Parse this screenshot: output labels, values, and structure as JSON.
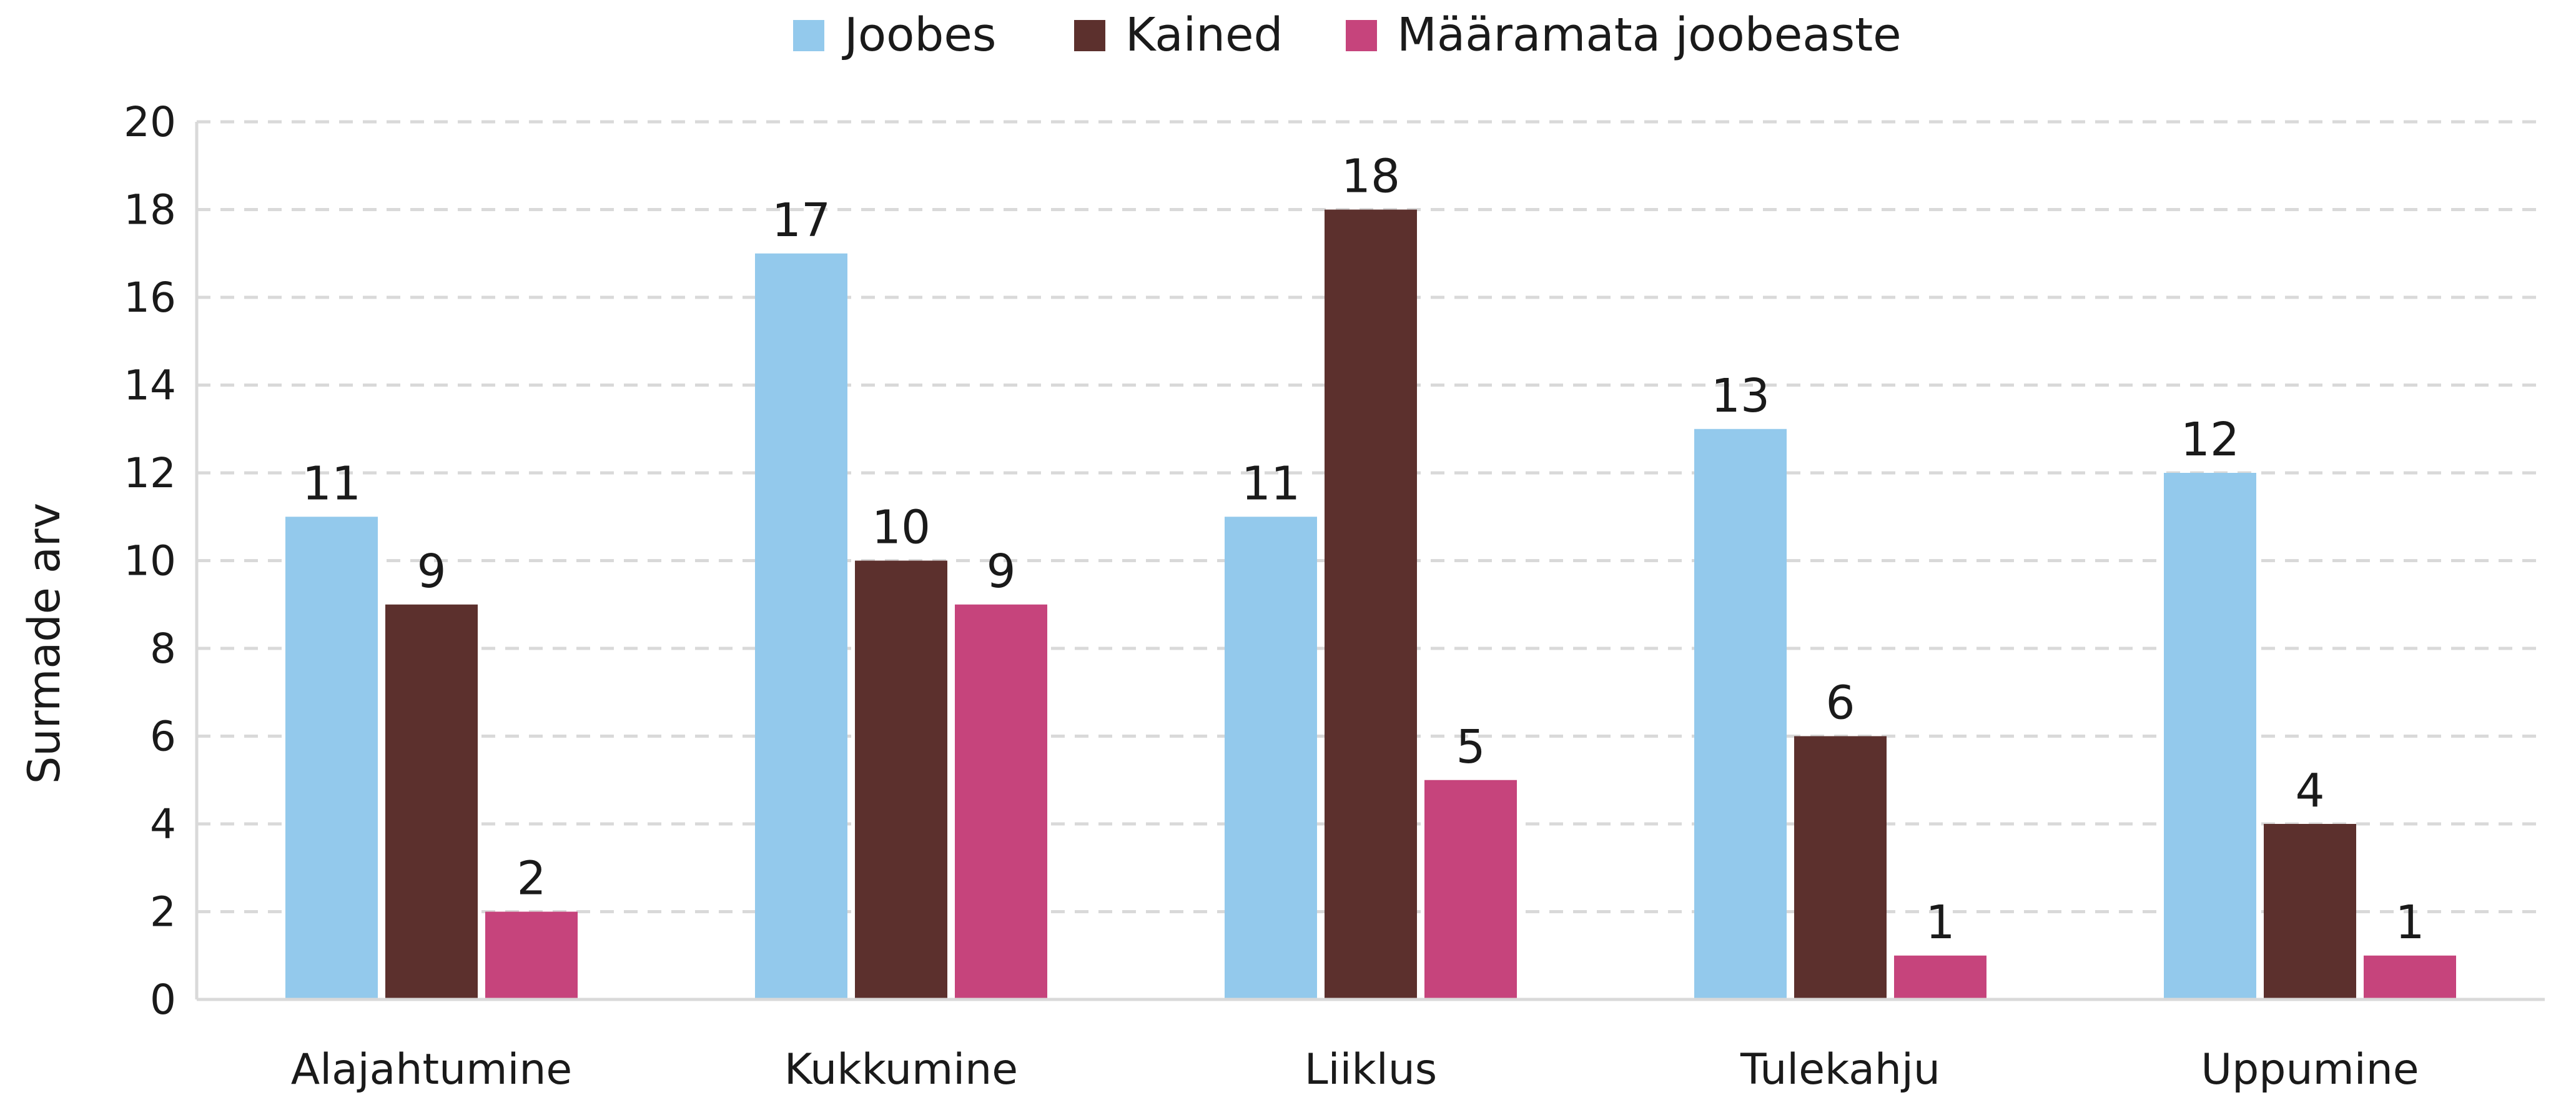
{
  "chart_data": {
    "type": "bar",
    "title": "",
    "xlabel": "",
    "ylabel": "Surmade arv",
    "ylim": [
      0,
      20
    ],
    "yticks": [
      0,
      2,
      4,
      6,
      8,
      10,
      12,
      14,
      16,
      18,
      20
    ],
    "grid": true,
    "legend_position": "top-center",
    "categories": [
      "Alajahtumine",
      "Kukkumine",
      "Liiklus",
      "Tulekahju",
      "Uppumine"
    ],
    "series": [
      {
        "name": "Joobes",
        "color": "#93c9ec",
        "values": [
          11,
          17,
          11,
          13,
          12
        ]
      },
      {
        "name": "Kained",
        "color": "#5c302d",
        "values": [
          9,
          10,
          18,
          6,
          4
        ]
      },
      {
        "name": "Määramata joobeaste",
        "color": "#c6447c",
        "values": [
          2,
          9,
          5,
          1,
          1
        ]
      }
    ]
  }
}
